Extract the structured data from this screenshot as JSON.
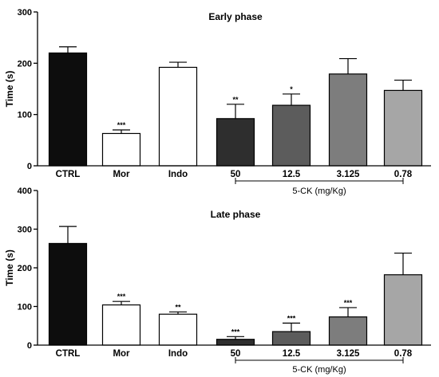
{
  "chart_data": [
    {
      "type": "bar",
      "title": "Early phase",
      "ylabel": "Time (s)",
      "xlabel": "",
      "ylim": [
        0,
        300
      ],
      "yticks": [
        "0",
        "100",
        "200",
        "300"
      ],
      "categories": [
        "CTRL",
        "Mor",
        "Indo",
        "50",
        "12.5",
        "3.125",
        "0.78"
      ],
      "values": [
        220,
        63,
        192,
        92,
        118,
        179,
        147
      ],
      "errors": [
        12,
        7,
        10,
        28,
        22,
        30,
        20
      ],
      "significance": [
        "",
        "***",
        "",
        "**",
        "*",
        "",
        ""
      ],
      "bar_colors": [
        "#0d0d0d",
        "#ffffff",
        "#ffffff",
        "#2e2e2e",
        "#5c5c5c",
        "#7d7d7d",
        "#a6a6a6"
      ],
      "group_label": "5-CK (mg/Kg)",
      "grid": false
    },
    {
      "type": "bar",
      "title": "Late phase",
      "ylabel": "Time (s)",
      "xlabel": "",
      "ylim": [
        0,
        400
      ],
      "yticks": [
        "0",
        "100",
        "200",
        "300",
        "400"
      ],
      "categories": [
        "CTRL",
        "Mor",
        "Indo",
        "50",
        "12.5",
        "3.125",
        "0.78"
      ],
      "values": [
        263,
        104,
        80,
        15,
        35,
        73,
        182
      ],
      "errors": [
        44,
        9,
        6,
        7,
        22,
        24,
        56
      ],
      "significance": [
        "",
        "***",
        "**",
        "***",
        "***",
        "***",
        ""
      ],
      "bar_colors": [
        "#0d0d0d",
        "#ffffff",
        "#ffffff",
        "#2e2e2e",
        "#5c5c5c",
        "#7d7d7d",
        "#a6a6a6"
      ],
      "group_label": "5-CK (mg/Kg)",
      "grid": false
    }
  ]
}
